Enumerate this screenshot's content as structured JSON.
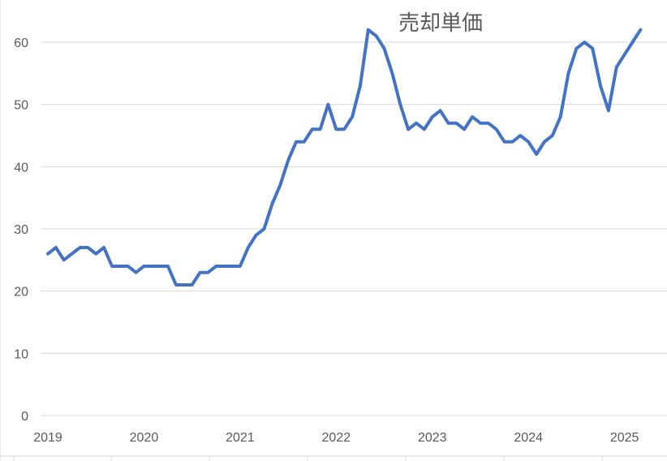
{
  "chart_data": {
    "type": "line",
    "title": "売却単価",
    "xlabel": "",
    "ylabel": "",
    "ylim": [
      0,
      60
    ],
    "yticks": [
      0,
      10,
      20,
      30,
      40,
      50,
      60
    ],
    "xticks": [
      "2019",
      "2020",
      "2021",
      "2022",
      "2023",
      "2024",
      "2025"
    ],
    "x_start": "2019-01",
    "x_interval": "month",
    "grid": true,
    "legend": "none",
    "line_color": "#4472C4",
    "series": [
      {
        "values": [
          26,
          27,
          25,
          26,
          27,
          27,
          26,
          27,
          24,
          24,
          24,
          23,
          24,
          24,
          24,
          24,
          21,
          21,
          21,
          23,
          23,
          24,
          24,
          24,
          24,
          27,
          29,
          30,
          34,
          37,
          41,
          44,
          44,
          46,
          46,
          50,
          46,
          46,
          48,
          53,
          62,
          61,
          59,
          55,
          50,
          46,
          47,
          46,
          48,
          49,
          47,
          47,
          46,
          48,
          47,
          47,
          46,
          44,
          44,
          45,
          44,
          42,
          44,
          45,
          48,
          55,
          59,
          60,
          59,
          53,
          49,
          56,
          58,
          60,
          62
        ]
      }
    ]
  }
}
